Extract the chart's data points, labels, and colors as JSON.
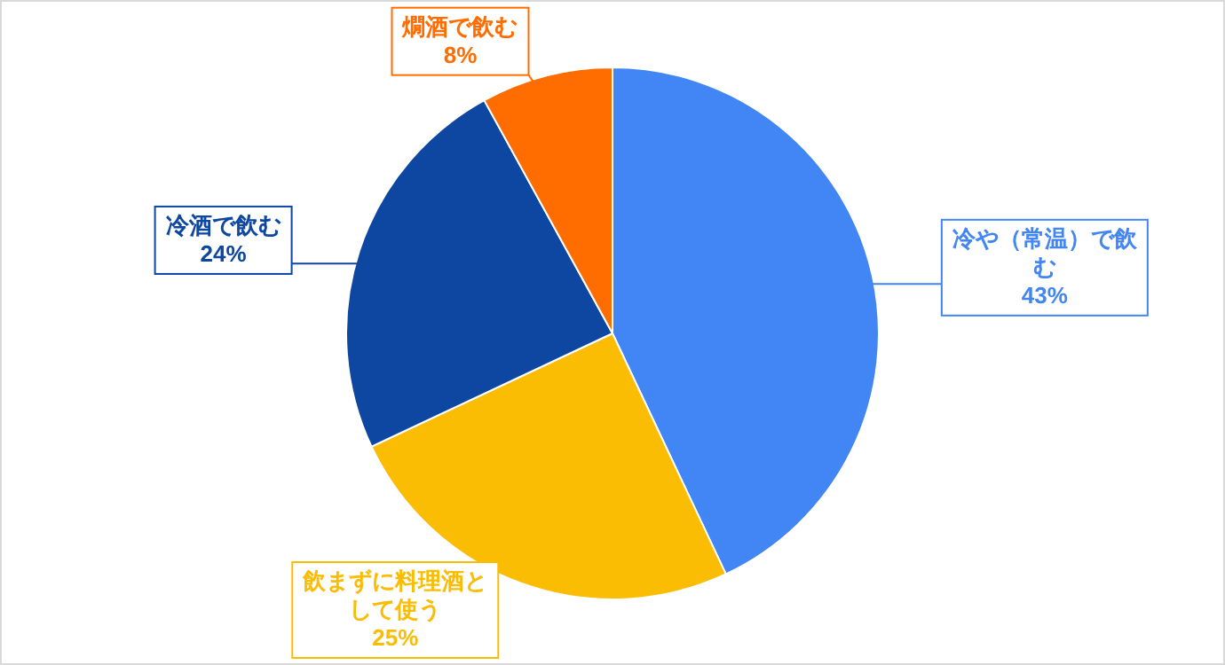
{
  "chart_data": {
    "type": "pie",
    "categories": [
      "冷や（常温）で飲む",
      "飲まずに料理酒として使う",
      "冷酒で飲む",
      "燗酒で飲む"
    ],
    "values": [
      43,
      25,
      24,
      8
    ],
    "colors": [
      "#4285f4",
      "#fbbc04",
      "#0d47a1",
      "#ff6d01"
    ],
    "value_labels": [
      "43%",
      "25%",
      "24%",
      "8%"
    ]
  }
}
